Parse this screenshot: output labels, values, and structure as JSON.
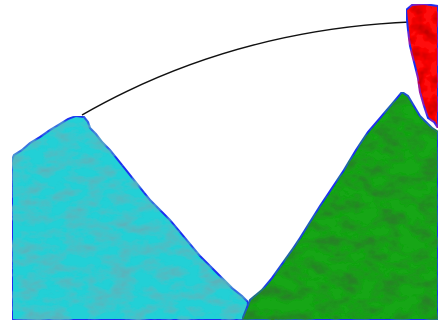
{
  "scene": {
    "background": "#ffffff",
    "regions": [
      {
        "name": "cyan-terrain-region",
        "color": "#22d0d6",
        "border": "#1a2ff0"
      },
      {
        "name": "green-terrain-region",
        "color": "#12a612",
        "border": "#1a2ff0"
      },
      {
        "name": "red-terrain-region",
        "color": "#ff1010",
        "border": "#1a2ff0"
      }
    ],
    "arc_color": "#111111"
  }
}
